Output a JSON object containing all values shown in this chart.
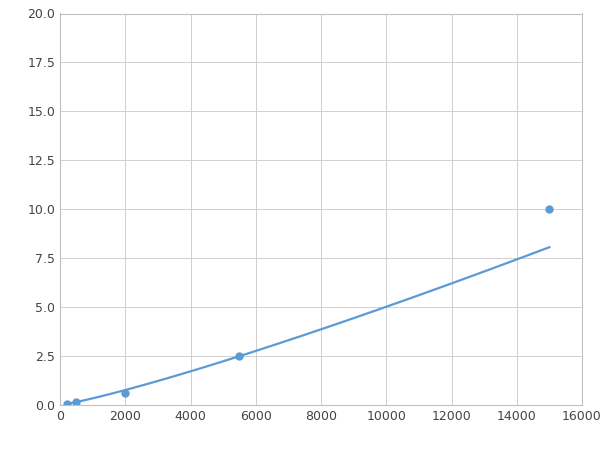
{
  "x_points": [
    200,
    500,
    800,
    2000,
    5500,
    15000
  ],
  "y_points": [
    0.07,
    0.15,
    0.2,
    0.6,
    2.5,
    10.0
  ],
  "marked_x": [
    200,
    500,
    2000,
    5500,
    15000
  ],
  "marked_y": [
    0.07,
    0.15,
    0.6,
    2.5,
    10.0
  ],
  "line_color": "#5b9bd5",
  "marker_color": "#5b9bd5",
  "marker_size": 5,
  "line_width": 1.6,
  "xlim": [
    0,
    16000
  ],
  "ylim": [
    0,
    20
  ],
  "xticks": [
    0,
    2000,
    4000,
    6000,
    8000,
    10000,
    12000,
    14000,
    16000
  ],
  "yticks": [
    0.0,
    2.5,
    5.0,
    7.5,
    10.0,
    12.5,
    15.0,
    17.5,
    20.0
  ],
  "grid": true,
  "background_color": "#ffffff",
  "figsize": [
    6.0,
    4.5
  ],
  "dpi": 100
}
